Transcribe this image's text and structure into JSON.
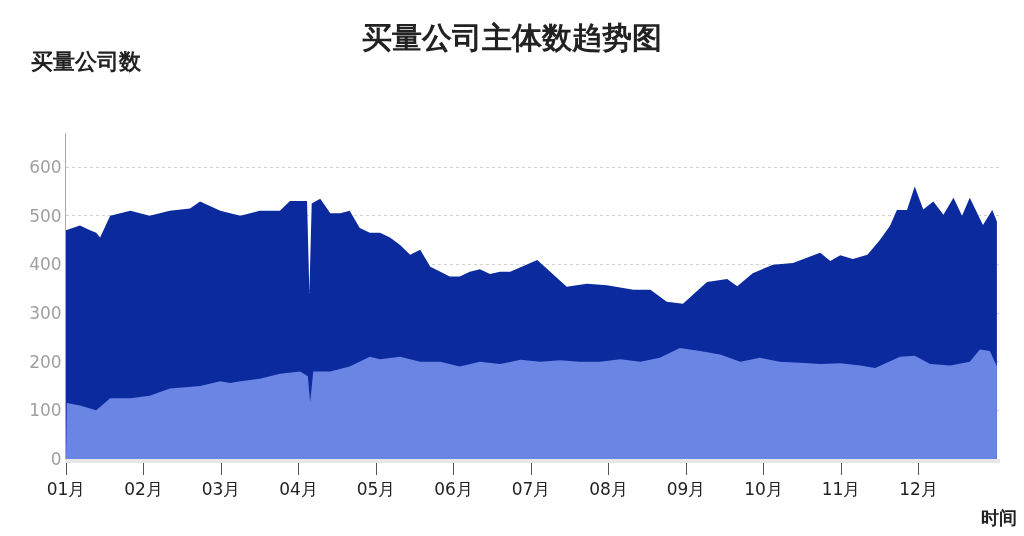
{
  "chart_data": {
    "type": "area",
    "title": "买量公司主体数趋势图",
    "ylabel": "买量公司数",
    "xlabel": "时间",
    "series": [
      {
        "color": "#0a2a9e",
        "x": [
          1.0,
          1.18,
          1.31,
          1.39,
          1.44,
          1.57,
          1.83,
          2.08,
          2.34,
          2.6,
          2.73,
          2.99,
          3.25,
          3.5,
          3.76,
          3.89,
          4.02,
          4.11,
          4.14,
          4.17,
          4.28,
          4.41,
          4.54,
          4.66,
          4.79,
          4.92,
          5.05,
          5.18,
          5.31,
          5.44,
          5.57,
          5.7,
          5.83,
          5.95,
          6.08,
          6.21,
          6.34,
          6.47,
          6.6,
          6.73,
          7.08,
          7.46,
          7.72,
          7.98,
          8.32,
          8.54,
          8.75,
          8.96,
          9.27,
          9.53,
          9.66,
          9.86,
          10.12,
          10.38,
          10.73,
          10.86,
          10.99,
          11.15,
          11.34,
          11.5,
          11.63,
          11.72,
          11.85,
          11.95,
          12.06,
          12.19,
          12.32,
          12.45,
          12.56,
          12.66,
          12.83,
          12.95,
          13.01
        ],
        "values": [
          470,
          480,
          470,
          465,
          455,
          500,
          510,
          500,
          510,
          515,
          529,
          510,
          500,
          510,
          510,
          530,
          530,
          530,
          341,
          525,
          535,
          505,
          505,
          510,
          475,
          465,
          465,
          455,
          440,
          420,
          430,
          395,
          385,
          375,
          375,
          385,
          390,
          380,
          385,
          385,
          409,
          354,
          360,
          357,
          348,
          348,
          323,
          319,
          364,
          370,
          355,
          382,
          399,
          403,
          424,
          407,
          419,
          411,
          420,
          450,
          479,
          512,
          512,
          560,
          513,
          529,
          502,
          537,
          500,
          537,
          481,
          512,
          488
        ]
      },
      {
        "color": "#6a85e4",
        "x": [
          1.0,
          1.01,
          1.18,
          1.39,
          1.57,
          1.83,
          2.08,
          2.34,
          2.73,
          2.99,
          3.12,
          3.25,
          3.5,
          3.76,
          4.02,
          4.12,
          4.15,
          4.19,
          4.41,
          4.66,
          4.92,
          5.05,
          5.31,
          5.57,
          5.83,
          6.08,
          6.34,
          6.6,
          6.86,
          7.12,
          7.37,
          7.63,
          7.89,
          8.15,
          8.41,
          8.66,
          8.92,
          9.18,
          9.44,
          9.7,
          9.95,
          10.21,
          10.47,
          10.73,
          10.99,
          11.25,
          11.44,
          11.76,
          11.95,
          12.15,
          12.41,
          12.66,
          12.79,
          12.92,
          13.01
        ],
        "values": [
          0,
          115,
          110,
          100,
          125,
          125,
          130,
          145,
          150,
          160,
          156,
          160,
          165,
          175,
          180,
          170,
          117,
          180,
          180,
          190,
          210,
          205,
          210,
          200,
          200,
          190,
          200,
          195,
          204,
          200,
          203,
          200,
          200,
          205,
          200,
          208,
          228,
          222,
          215,
          200,
          208,
          200,
          198,
          195,
          197,
          192,
          187,
          210,
          212,
          195,
          192,
          200,
          225,
          222,
          190
        ]
      }
    ],
    "xlim": [
      1,
      13.05
    ],
    "xticks": [
      {
        "value": 1,
        "label": "01月"
      },
      {
        "value": 2,
        "label": "02月"
      },
      {
        "value": 3,
        "label": "03月"
      },
      {
        "value": 4,
        "label": "04月"
      },
      {
        "value": 5,
        "label": "05月"
      },
      {
        "value": 6,
        "label": "06月"
      },
      {
        "value": 7,
        "label": "07月"
      },
      {
        "value": 8,
        "label": "08月"
      },
      {
        "value": 9,
        "label": "09月"
      },
      {
        "value": 10,
        "label": "10月"
      },
      {
        "value": 11,
        "label": "11月"
      },
      {
        "value": 12,
        "label": "12月"
      }
    ],
    "ylim": [
      0,
      670
    ],
    "yticks": [
      0,
      100,
      200,
      300,
      400,
      500,
      600
    ],
    "grid": "y"
  }
}
